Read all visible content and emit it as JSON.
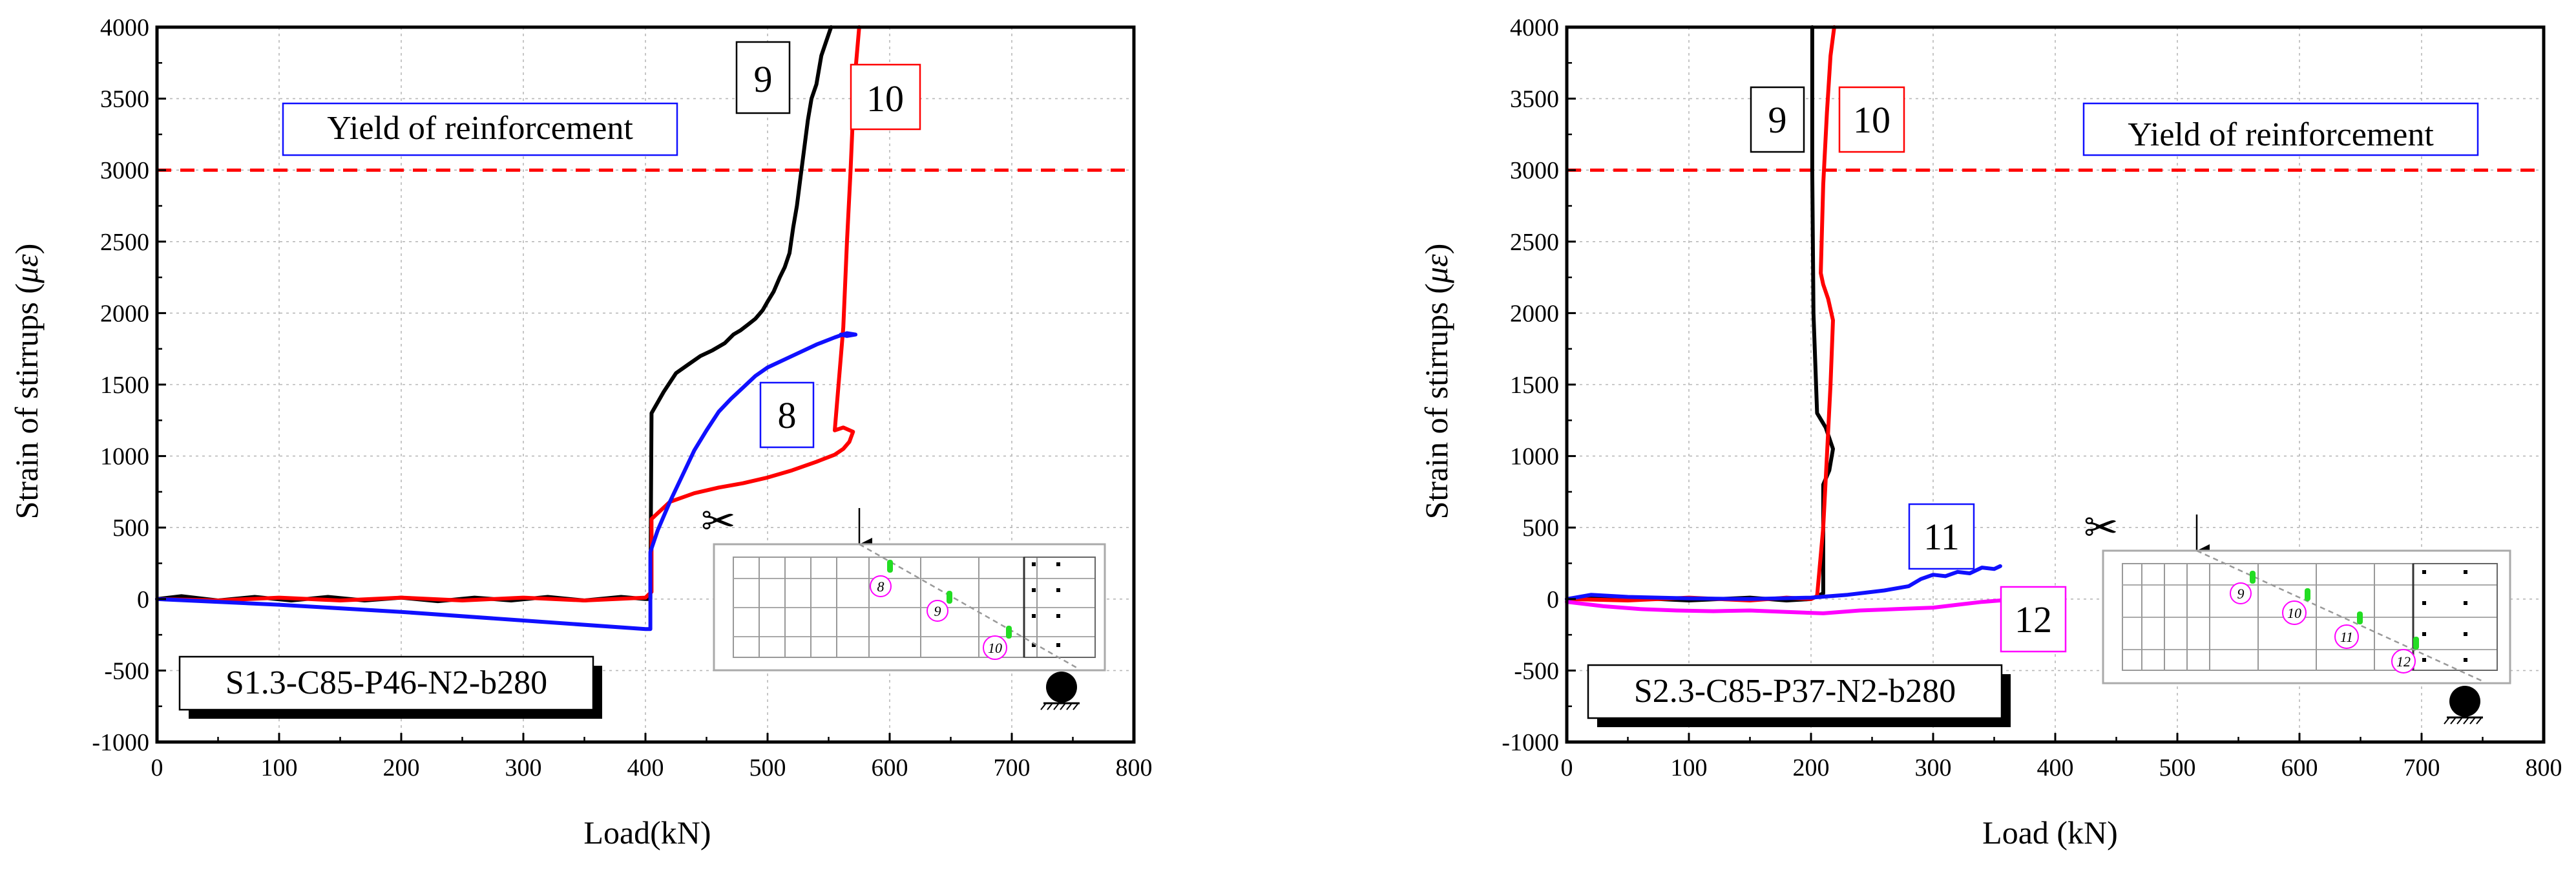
{
  "colors": {
    "black": "#000000",
    "red": "#ff0000",
    "blue": "#1010ff",
    "magenta": "#ff00ff",
    "green": "#22dd22",
    "grid": "#b8b8b8",
    "yield": "#ff0000"
  },
  "chart_data": [
    {
      "type": "line",
      "xlabel": "Load(kN)",
      "ylabel": "Strain of stirrups (",
      "ylabel_symbol": "με",
      "ylabel_close": ")",
      "xlim": [
        0,
        800
      ],
      "ylim": [
        -1000,
        4000
      ],
      "xticks": [
        "0",
        "100",
        "200",
        "300",
        "400",
        "500",
        "600",
        "700",
        "800"
      ],
      "yticks": [
        "4000",
        "3500",
        "3000",
        "2500",
        "2000",
        "1500",
        "1000",
        "500",
        "0",
        "-500",
        "-1000"
      ],
      "yield_line": {
        "value": 3000,
        "label": "Yield of reinforcement"
      },
      "specimen_label": "S1.3-C85-P46-N2-b280",
      "series": [
        {
          "name": "9",
          "color": "black",
          "x": [
            0,
            20,
            50,
            80,
            110,
            140,
            170,
            200,
            230,
            260,
            290,
            320,
            350,
            380,
            400,
            404,
            405,
            415,
            425,
            435,
            445,
            455,
            465,
            472,
            478,
            484,
            490,
            496,
            500,
            505,
            510,
            514,
            518,
            521,
            524,
            527,
            530,
            533,
            536,
            540,
            544,
            548,
            552
          ],
          "y": [
            0,
            20,
            -10,
            15,
            -10,
            15,
            -10,
            10,
            -15,
            10,
            -10,
            15,
            -10,
            15,
            0,
            0,
            1300,
            1450,
            1580,
            1640,
            1700,
            1740,
            1790,
            1850,
            1880,
            1920,
            1960,
            2020,
            2080,
            2150,
            2250,
            2320,
            2420,
            2600,
            2750,
            2950,
            3150,
            3350,
            3500,
            3600,
            3800,
            3900,
            4000
          ]
        },
        {
          "name": "10",
          "color": "red",
          "x": [
            0,
            50,
            100,
            150,
            200,
            250,
            300,
            350,
            400,
            405,
            405,
            420,
            440,
            460,
            480,
            500,
            520,
            540,
            555,
            562,
            567,
            570,
            562,
            555,
            562,
            565,
            568,
            570,
            572,
            575
          ],
          "y": [
            0,
            -10,
            10,
            -10,
            10,
            -10,
            10,
            -10,
            10,
            50,
            560,
            680,
            740,
            780,
            810,
            850,
            900,
            960,
            1010,
            1050,
            1100,
            1170,
            1200,
            1180,
            1900,
            2500,
            3000,
            3400,
            3700,
            4000
          ]
        },
        {
          "name": "8",
          "color": "blue",
          "x": [
            0,
            100,
            200,
            300,
            400,
            404,
            404,
            410,
            420,
            430,
            440,
            450,
            460,
            470,
            480,
            490,
            500,
            520,
            540,
            555,
            565,
            572,
            565,
            560
          ],
          "y": [
            0,
            -40,
            -90,
            -150,
            -210,
            -210,
            330,
            480,
            680,
            860,
            1040,
            1180,
            1310,
            1400,
            1480,
            1560,
            1620,
            1700,
            1780,
            1830,
            1860,
            1850,
            1840,
            1850
          ]
        }
      ],
      "annotations": [
        {
          "text": "9",
          "color": "black"
        },
        {
          "text": "10",
          "color": "red"
        },
        {
          "text": "8",
          "color": "blue"
        }
      ],
      "inset_labels": [
        "8",
        "9",
        "10"
      ]
    },
    {
      "type": "line",
      "xlabel": "Load (kN)",
      "ylabel": "Strain of stirrups (",
      "ylabel_symbol": "με",
      "ylabel_close": ")",
      "xlim": [
        0,
        800
      ],
      "ylim": [
        -1000,
        4000
      ],
      "xticks": [
        "0",
        "100",
        "200",
        "300",
        "400",
        "500",
        "600",
        "700",
        "800"
      ],
      "yticks": [
        "4000",
        "3500",
        "3000",
        "2500",
        "2000",
        "1500",
        "1000",
        "500",
        "0",
        "-500",
        "-1000"
      ],
      "yield_line": {
        "value": 3000,
        "label": "Yield of reinforcement"
      },
      "specimen_label": "S2.3-C85-P37-N2-b280",
      "series": [
        {
          "name": "9",
          "color": "black",
          "x": [
            0,
            50,
            100,
            150,
            180,
            200,
            205,
            210,
            210,
            210,
            215,
            218,
            212,
            205,
            202,
            201,
            201
          ],
          "y": [
            0,
            10,
            -10,
            10,
            -10,
            0,
            20,
            40,
            500,
            800,
            900,
            1050,
            1200,
            1300,
            2000,
            3000,
            4000
          ]
        },
        {
          "name": "10",
          "color": "red",
          "x": [
            0,
            50,
            100,
            150,
            180,
            200,
            205,
            210,
            213,
            216,
            218,
            214,
            210,
            208,
            210,
            213,
            216,
            219
          ],
          "y": [
            0,
            -10,
            10,
            -10,
            10,
            0,
            20,
            500,
            1000,
            1500,
            1950,
            2100,
            2200,
            2280,
            2900,
            3400,
            3800,
            4000
          ]
        },
        {
          "name": "11",
          "color": "blue",
          "x": [
            0,
            20,
            50,
            100,
            150,
            200,
            230,
            260,
            280,
            290,
            300,
            310,
            320,
            330,
            340,
            350,
            355
          ],
          "y": [
            0,
            30,
            15,
            5,
            0,
            10,
            30,
            60,
            90,
            140,
            170,
            160,
            190,
            180,
            220,
            210,
            230
          ]
        },
        {
          "name": "12",
          "color": "magenta",
          "x": [
            0,
            30,
            60,
            90,
            120,
            150,
            180,
            210,
            240,
            270,
            300,
            320,
            340,
            355
          ],
          "y": [
            -20,
            -50,
            -70,
            -80,
            -85,
            -80,
            -90,
            -100,
            -80,
            -70,
            -60,
            -40,
            -20,
            -10
          ]
        }
      ],
      "annotations": [
        {
          "text": "9",
          "color": "black"
        },
        {
          "text": "10",
          "color": "red"
        },
        {
          "text": "11",
          "color": "blue"
        },
        {
          "text": "12",
          "color": "magenta"
        }
      ],
      "inset_labels": [
        "9",
        "10",
        "11",
        "12"
      ]
    }
  ]
}
